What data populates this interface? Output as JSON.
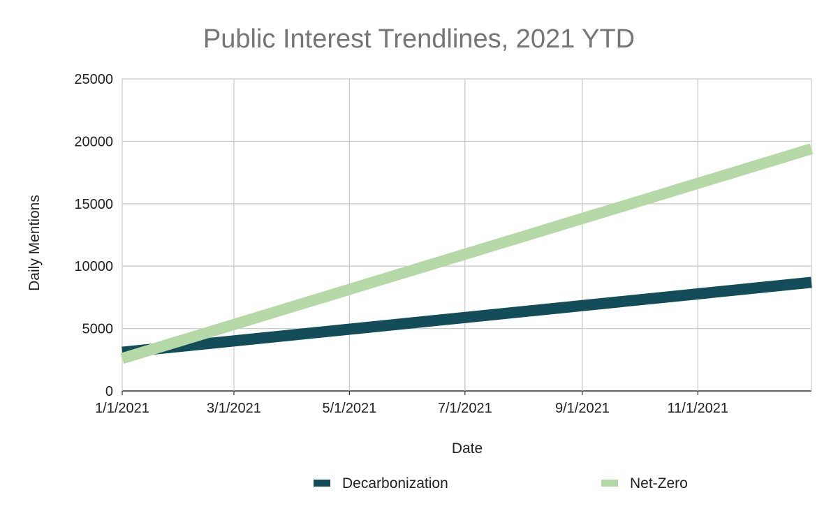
{
  "chart_data": {
    "type": "line",
    "title": "Public Interest Trendlines, 2021 YTD",
    "xlabel": "Date",
    "ylabel": "Daily Mentions",
    "x_ticks": [
      "1/1/2021",
      "3/1/2021",
      "5/1/2021",
      "7/1/2021",
      "9/1/2021",
      "11/1/2021"
    ],
    "y_ticks": [
      "0",
      "5000",
      "10000",
      "15000",
      "20000",
      "25000"
    ],
    "ylim": [
      0,
      25000
    ],
    "xlim": [
      "2021-01-01",
      "2021-12-31"
    ],
    "grid": true,
    "legend_position": "bottom",
    "series": [
      {
        "name": "Decarbonization",
        "color": "#144d5a",
        "x": [
          "2021-01-01",
          "2021-12-31"
        ],
        "y": [
          3100,
          8700
        ]
      },
      {
        "name": "Net-Zero",
        "color": "#b5d8a7",
        "x": [
          "2021-01-01",
          "2021-12-31"
        ],
        "y": [
          2600,
          19400
        ]
      }
    ]
  }
}
